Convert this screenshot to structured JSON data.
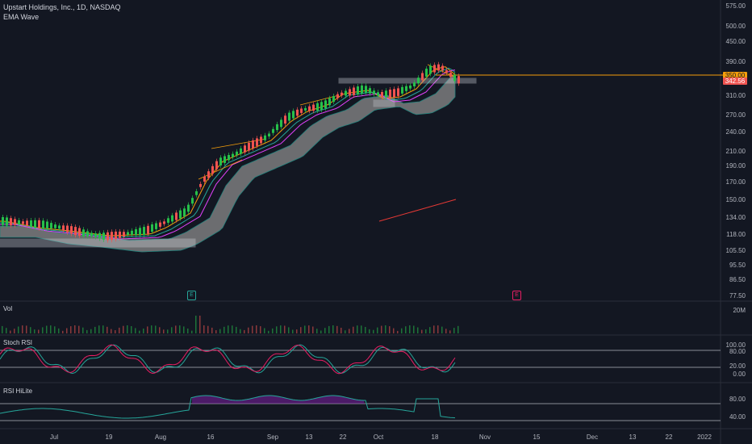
{
  "header": {
    "symbol_line": "Upstart Holdings, Inc., 1D, NASDAQ",
    "indicator": "EMA Wave"
  },
  "price_axis": [
    "575.00",
    "500.00",
    "450.00",
    "390.00",
    "350.00",
    "342.56",
    "310.00",
    "270.00",
    "240.00",
    "210.00",
    "190.00",
    "170.00",
    "150.00",
    "134.00",
    "118.00",
    "105.50",
    "95.50",
    "86.50",
    "77.50"
  ],
  "price_tags": {
    "level": "350.00",
    "last": "342.56",
    "level_color": "#f59e0b",
    "last_color": "#ef5350"
  },
  "events": {
    "earnings_label": "E",
    "earnings_color": "#26a69a",
    "earnings2_label": "E",
    "earnings2_color": "#e91e63"
  },
  "panes": {
    "volume": {
      "title": "Vol",
      "axis": [
        "20M"
      ]
    },
    "stoch": {
      "title": "Stoch RSI",
      "axis": [
        "100.00",
        "80.00",
        "20.00",
        "0.00"
      ]
    },
    "rsi": {
      "title": "RSI HiLite",
      "axis": [
        "80.00",
        "40.00"
      ]
    }
  },
  "date_axis": [
    "Jul",
    "19",
    "Aug",
    "16",
    "Sep",
    "13",
    "22",
    "Oct",
    "18",
    "Nov",
    "15",
    "Dec",
    "13",
    "22",
    "2022"
  ],
  "colors": {
    "bg": "#131722",
    "up": "#26c04a",
    "down": "#ef5350",
    "ema_fast": "#f59e0b",
    "ema_mid": "#26a69a",
    "ema_slow": "#e040fb",
    "ribbon": "#8a8a8a",
    "long_ma": "#e53935",
    "rsi_line": "#26a69a",
    "stoch_k": "#26a69a",
    "stoch_d": "#e91e63",
    "rsi_fill": "#7b1fa2"
  }
}
